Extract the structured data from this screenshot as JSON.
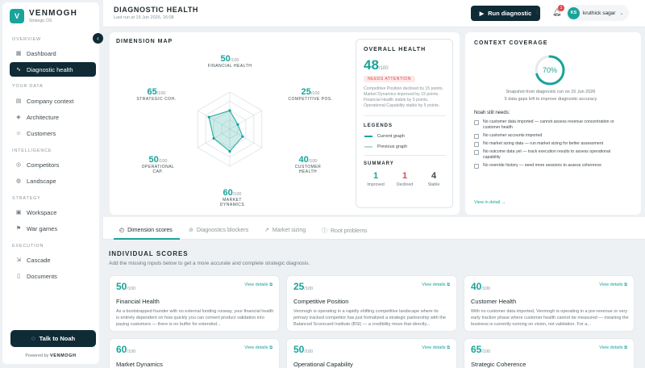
{
  "brand": {
    "logo_letter": "V",
    "name": "VENMOGH",
    "tagline": "Strategic OS"
  },
  "sidebar": {
    "sections": [
      "OVERVIEW",
      "YOUR DATA",
      "INTELLIGENCE",
      "STRATEGY",
      "EXECUTION"
    ],
    "items": [
      {
        "label": "Dashboard",
        "icon": "grid-icon",
        "active": false
      },
      {
        "label": "Diagnostic health",
        "icon": "pulse-icon",
        "active": true
      },
      {
        "label": "Company context",
        "icon": "building-icon",
        "active": false
      },
      {
        "label": "Architecture",
        "icon": "layers-icon",
        "active": false
      },
      {
        "label": "Customers",
        "icon": "users-icon",
        "active": false
      },
      {
        "label": "Competitors",
        "icon": "target-icon",
        "active": false
      },
      {
        "label": "Landscape",
        "icon": "globe-icon",
        "active": false
      },
      {
        "label": "Workspace",
        "icon": "workspace-icon",
        "active": false
      },
      {
        "label": "War games",
        "icon": "flag-icon",
        "active": false
      },
      {
        "label": "Cascade",
        "icon": "cascade-icon",
        "active": false
      },
      {
        "label": "Documents",
        "icon": "document-icon",
        "active": false
      }
    ],
    "talk_button": "Talk to Noah",
    "powered_prefix": "Powered by",
    "powered_brand": "VENMOGH"
  },
  "header": {
    "title": "DIAGNOSTIC HEALTH",
    "last_run": "Last run at 15 Jun 2026, 16:08",
    "run_button": "Run diagnostic",
    "notification_count": "1",
    "user_initials": "KS",
    "user_name": "kruthick sagar"
  },
  "dimension_map": {
    "title": "DIMENSION MAP",
    "suffix": "/100",
    "dimensions": [
      {
        "name": "FINANCIAL HEALTH",
        "score": 50
      },
      {
        "name": "COMPETITIVE POS.",
        "score": 25
      },
      {
        "name": "CUSTOMER HEALTH",
        "score": 40
      },
      {
        "name": "MARKET DYNAMICS",
        "score": 60
      },
      {
        "name": "OPERATIONAL CAP.",
        "score": 50
      },
      {
        "name": "STRATEGIC COH.",
        "score": 65
      }
    ]
  },
  "overall": {
    "title": "OVERALL HEALTH",
    "score": "48",
    "suffix": "/100",
    "badge": "NEEDS ATTENTION",
    "description": "Competitive Position declined by 15 points. Market Dynamics improved by 15 points. Financial Health stable by 5 points. Operational Capability stable by 5 points.",
    "legends_title": "LEGENDS",
    "legend_current": "Current graph",
    "legend_previous": "Previous graph",
    "summary_title": "SUMMARY",
    "summary": [
      {
        "value": "1",
        "label": "Improved",
        "color": "#1aa39a"
      },
      {
        "value": "1",
        "label": "Declined",
        "color": "#d94a4a"
      },
      {
        "value": "4",
        "label": "Stable",
        "color": "#3d4a4f"
      }
    ]
  },
  "context_coverage": {
    "title": "CONTEXT COVERAGE",
    "percent": 70,
    "percent_label": "70%",
    "snapshot_line1": "Snapshot from diagnostic run on 15 Jun 2026",
    "snapshot_line2": "5 data gaps left to improve diagnostic accuracy",
    "needs_title": "Noah still needs:",
    "needs": [
      "No customer data imported — cannot assess revenue concentration or customer health",
      "No customer accounts imported",
      "No market sizing data — run market sizing for better assessment",
      "No outcome data yet — track execution results to assess operational capability",
      "No override history — need more sessions to assess coherence"
    ],
    "view_link": "View in detail →"
  },
  "tabs": [
    {
      "label": "Dimension scores",
      "icon": "clock-icon",
      "active": true
    },
    {
      "label": "Diagnostics blockers",
      "icon": "block-icon",
      "active": false
    },
    {
      "label": "Market sizing",
      "icon": "trend-icon",
      "active": false
    },
    {
      "label": "Root problems",
      "icon": "info-icon",
      "active": false
    }
  ],
  "individual": {
    "title": "INDIVIDUAL SCORES",
    "subtitle": "Add the missing inputs below to get a more accurate and complete strategic diagnosis.",
    "view_label": "View details",
    "suffix": "/100",
    "cards": [
      {
        "score": "50",
        "name": "Financial Health",
        "desc": "As a bootstrapped founder with no external funding runway, your financial health is entirely dependent on how quickly you can convert product validation into paying customers — there is no buffer for extended..."
      },
      {
        "score": "25",
        "name": "Competitive Position",
        "desc": "Venmogh is operating in a rapidly shifting competitive landscape where its primary tracked competitor has just formalized a strategic partnership with the Balanced Scorecard Institute (BSI) — a credibility move that directly..."
      },
      {
        "score": "40",
        "name": "Customer Health",
        "desc": "With no customer data imported, Venmogh is operating in a pre-revenue or very early traction phase where customer health cannot be measured — meaning the business is currently running on vision, not validation. For a..."
      },
      {
        "score": "60",
        "name": "Market Dynamics",
        "desc": ""
      },
      {
        "score": "50",
        "name": "Operational Capability",
        "desc": ""
      },
      {
        "score": "65",
        "name": "Strategic Coherence",
        "desc": ""
      }
    ]
  },
  "colors": {
    "accent": "#1aa39a",
    "dark": "#0f2b36",
    "danger": "#d94a4a"
  }
}
